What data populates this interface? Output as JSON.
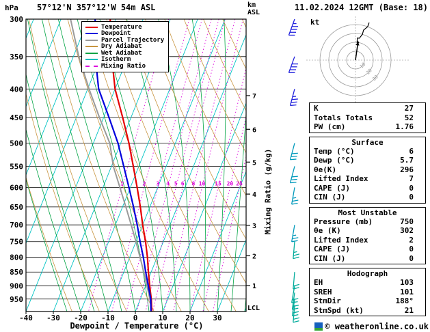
{
  "window": {
    "title_station": "57°12'N 357°12'W 54m ASL",
    "datetime": "11.02.2024 12GMT (Base: 18)"
  },
  "axes": {
    "pressure_unit": "hPa",
    "km_unit_line1": "km",
    "km_unit_line2": "ASL",
    "pressure_ticks": [
      300,
      350,
      400,
      450,
      500,
      550,
      600,
      650,
      700,
      750,
      800,
      850,
      900,
      950
    ],
    "temp_ticks": [
      -40,
      -30,
      -20,
      -10,
      0,
      10,
      20,
      30
    ],
    "xlabel": "Dewpoint / Temperature (°C)",
    "km_ticks": [
      1,
      2,
      3,
      4,
      5,
      6,
      7
    ],
    "mixing_axis_label": "Mixing Ratio (g/kg)",
    "mixing_values": [
      1,
      2,
      3,
      4,
      5,
      6,
      8,
      10,
      15,
      20,
      25
    ],
    "lcl_label": "LCL",
    "hodo_unit": "kt",
    "hodo_ring_labels": [
      10,
      20,
      30
    ]
  },
  "legend": [
    {
      "label": "Temperature",
      "color": "#e60000",
      "dash": ""
    },
    {
      "label": "Dewpoint",
      "color": "#0000dd",
      "dash": ""
    },
    {
      "label": "Parcel Trajectory",
      "color": "#9a9a9a",
      "dash": ""
    },
    {
      "label": "Dry Adiabat",
      "color": "#c89540",
      "dash": ""
    },
    {
      "label": "Wet Adiabat",
      "color": "#00a443",
      "dash": ""
    },
    {
      "label": "Isotherm",
      "color": "#00bcbc",
      "dash": ""
    },
    {
      "label": "Mixing Ratio",
      "color": "#dd00dd",
      "dash": "dashed"
    }
  ],
  "chart_data": {
    "type": "line",
    "title": "Skew-T log-P sounding",
    "pressure_range_hPa": [
      300,
      1000
    ],
    "temp_axis_range_C": [
      -40,
      38
    ],
    "pressure_hPa": [
      1000,
      950,
      900,
      850,
      800,
      750,
      700,
      650,
      600,
      550,
      500,
      450,
      400,
      350,
      300
    ],
    "temperature_C": [
      6,
      4,
      1.5,
      -1,
      -3.5,
      -6.5,
      -10,
      -13.5,
      -17.5,
      -22,
      -27,
      -33,
      -40,
      -46,
      -52
    ],
    "dewpoint_C": [
      5.7,
      3.8,
      1,
      -2,
      -5,
      -8.5,
      -12,
      -16,
      -20.5,
      -25.5,
      -31,
      -38,
      -46,
      -52,
      -57.5
    ],
    "parcel_C": [
      6,
      3.5,
      0.5,
      -2.7,
      -6.2,
      -10,
      -14.2,
      -18.8,
      -23.8,
      -29.3,
      -34,
      -41.5,
      -49.5,
      -58,
      -66.5
    ],
    "lcl_hPa": 995,
    "winds": [
      {
        "p": 300,
        "dir": 200,
        "spd": 45
      },
      {
        "p": 350,
        "dir": 200,
        "spd": 40
      },
      {
        "p": 400,
        "dir": 195,
        "spd": 35
      },
      {
        "p": 500,
        "dir": 195,
        "spd": 30
      },
      {
        "p": 550,
        "dir": 195,
        "spd": 30
      },
      {
        "p": 600,
        "dir": 190,
        "spd": 25
      },
      {
        "p": 700,
        "dir": 190,
        "spd": 25
      },
      {
        "p": 750,
        "dir": 185,
        "spd": 25
      },
      {
        "p": 850,
        "dir": 185,
        "spd": 20
      },
      {
        "p": 900,
        "dir": 190,
        "spd": 20
      },
      {
        "p": 925,
        "dir": 188,
        "spd": 21
      },
      {
        "p": 950,
        "dir": 188,
        "spd": 21
      },
      {
        "p": 975,
        "dir": 185,
        "spd": 18
      }
    ],
    "hodograph": {
      "storm_dir_deg": 188,
      "storm_spd_kt": 21
    }
  },
  "tables": [
    {
      "title": "",
      "rows": [
        [
          "K",
          "27"
        ],
        [
          "Totals Totals",
          "52"
        ],
        [
          "PW (cm)",
          "1.76"
        ]
      ]
    },
    {
      "title": "Surface",
      "rows": [
        [
          "Temp (°C)",
          "6"
        ],
        [
          "Dewp (°C)",
          "5.7"
        ],
        [
          "θe(K)",
          "296"
        ],
        [
          "Lifted Index",
          "7"
        ],
        [
          "CAPE (J)",
          "0"
        ],
        [
          "CIN (J)",
          "0"
        ]
      ]
    },
    {
      "title": "Most Unstable",
      "rows": [
        [
          "Pressure (mb)",
          "750"
        ],
        [
          "θe (K)",
          "302"
        ],
        [
          "Lifted Index",
          "2"
        ],
        [
          "CAPE (J)",
          "0"
        ],
        [
          "CIN (J)",
          "0"
        ]
      ]
    },
    {
      "title": "Hodograph",
      "rows": [
        [
          "EH",
          "103"
        ],
        [
          "SREH",
          "101"
        ],
        [
          "StmDir",
          "188°"
        ],
        [
          "StmSpd (kt)",
          "21"
        ]
      ]
    }
  ],
  "footer": {
    "copyright": "© weatheronline.co.uk"
  }
}
